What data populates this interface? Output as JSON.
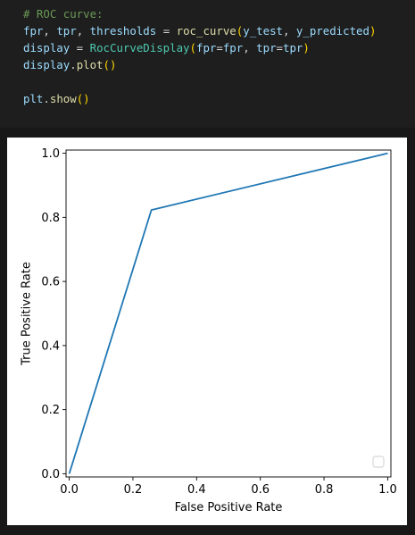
{
  "code": {
    "lines": [
      [
        {
          "text": "# ROC curve:",
          "role": "comment"
        }
      ],
      [
        {
          "text": "fpr",
          "role": "var"
        },
        {
          "text": ", ",
          "role": "plain"
        },
        {
          "text": "tpr",
          "role": "var"
        },
        {
          "text": ", ",
          "role": "plain"
        },
        {
          "text": "thresholds",
          "role": "var"
        },
        {
          "text": " = ",
          "role": "plain"
        },
        {
          "text": "roc_curve",
          "role": "func"
        },
        {
          "text": "(",
          "role": "paren"
        },
        {
          "text": "y_test",
          "role": "var"
        },
        {
          "text": ", ",
          "role": "plain"
        },
        {
          "text": "y_predicted",
          "role": "var"
        },
        {
          "text": ")",
          "role": "paren"
        }
      ],
      [
        {
          "text": "display",
          "role": "var"
        },
        {
          "text": " = ",
          "role": "plain"
        },
        {
          "text": "RocCurveDisplay",
          "role": "class"
        },
        {
          "text": "(",
          "role": "paren"
        },
        {
          "text": "fpr",
          "role": "var"
        },
        {
          "text": "=",
          "role": "plain"
        },
        {
          "text": "fpr",
          "role": "var"
        },
        {
          "text": ", ",
          "role": "plain"
        },
        {
          "text": "tpr",
          "role": "var"
        },
        {
          "text": "=",
          "role": "plain"
        },
        {
          "text": "tpr",
          "role": "var"
        },
        {
          "text": ")",
          "role": "paren"
        }
      ],
      [
        {
          "text": "display",
          "role": "var"
        },
        {
          "text": ".",
          "role": "plain"
        },
        {
          "text": "plot",
          "role": "func"
        },
        {
          "text": "()",
          "role": "paren"
        }
      ],
      [],
      [
        {
          "text": "plt",
          "role": "var"
        },
        {
          "text": ".",
          "role": "plain"
        },
        {
          "text": "show",
          "role": "func"
        },
        {
          "text": "()",
          "role": "paren"
        }
      ]
    ],
    "colors": {
      "comment": "#6a9955",
      "var": "#9cdcfe",
      "plain": "#d4d4d4",
      "func": "#dcdcaa",
      "class": "#4ec9b0",
      "paren": "#ffd700"
    }
  },
  "chart_data": {
    "type": "line",
    "xlabel": "False Positive Rate",
    "ylabel": "True Positive Rate",
    "xlim": [
      -0.01,
      1.01
    ],
    "ylim": [
      -0.01,
      1.01
    ],
    "xticks": [
      0.0,
      0.2,
      0.4,
      0.6,
      0.8,
      1.0
    ],
    "xtick_labels": [
      "0.0",
      "0.2",
      "0.4",
      "0.6",
      "0.8",
      "1.0"
    ],
    "yticks": [
      0.0,
      0.2,
      0.4,
      0.6,
      0.8,
      1.0
    ],
    "ytick_labels": [
      "0.0",
      "0.2",
      "0.4",
      "0.6",
      "0.8",
      "1.0"
    ],
    "grid": false,
    "legend": "lower-right",
    "series": [
      {
        "x": [
          0.0,
          0.258,
          1.0
        ],
        "y": [
          0.0,
          0.823,
          1.0
        ],
        "color": "#1f77b4"
      }
    ]
  }
}
